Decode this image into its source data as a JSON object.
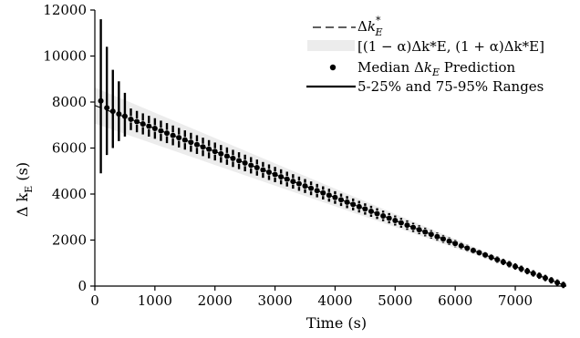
{
  "chart_data": {
    "type": "scatter",
    "x_label": "Time (s)",
    "y_label_main": "Δ k",
    "y_label_sub": "E",
    "y_label_unit": " (s)",
    "xlim": [
      0,
      7850
    ],
    "ylim": [
      0,
      12000
    ],
    "x_ticks": [
      0,
      1000,
      2000,
      3000,
      4000,
      5000,
      6000,
      7000
    ],
    "y_ticks": [
      0,
      2000,
      4000,
      6000,
      8000,
      10000,
      12000
    ],
    "x_tick_labels": [
      "0",
      "1000",
      "2000",
      "3000",
      "4000",
      "5000",
      "6000",
      "7000"
    ],
    "y_tick_labels": [
      "0",
      "2000",
      "4000",
      "6000",
      "8000",
      "10000",
      "12000"
    ],
    "alpha": 0.1,
    "reference_line": {
      "x": [
        0,
        7850
      ],
      "y": [
        7850,
        0
      ]
    },
    "wide_bars": [
      {
        "x": 100,
        "y": 8050,
        "lo": 4900,
        "hi": 11600
      },
      {
        "x": 200,
        "y": 7750,
        "lo": 5700,
        "hi": 10400
      },
      {
        "x": 300,
        "y": 7600,
        "lo": 6000,
        "hi": 9400
      },
      {
        "x": 400,
        "y": 7480,
        "lo": 6300,
        "hi": 8900
      },
      {
        "x": 500,
        "y": 7380,
        "lo": 6500,
        "hi": 8400
      }
    ],
    "narrow_bars": {
      "x_start": 600,
      "x_step": 100,
      "x_end": 7800,
      "lo_offset": 450,
      "hi_offset": 450
    },
    "median_points": {
      "x_start": 100,
      "x_step": 100,
      "x_end": 7800
    },
    "legend": [
      {
        "name": "dashed-line",
        "prefix": "Δ",
        "var": "k",
        "sub": "E",
        "sup": "*"
      },
      {
        "name": "band",
        "text": "[(1 − α)Δk*E, (1 + α)Δk*E]"
      },
      {
        "name": "median",
        "text_before": "Median Δ",
        "var": "k",
        "sub": "E",
        "text_after": " Prediction"
      },
      {
        "name": "ranges",
        "text": "5-25% and 75-95% Ranges"
      }
    ],
    "legend_position": "top-right",
    "grid": false
  }
}
